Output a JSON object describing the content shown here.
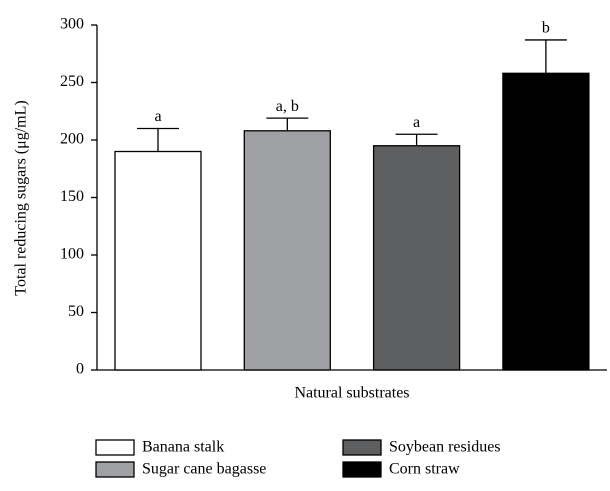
{
  "chart_data": {
    "type": "bar",
    "ylabel": "Total reducing sugars (μg/mL)",
    "categories": [
      "Natural substrates"
    ],
    "ylim": [
      0,
      300
    ],
    "yticks": [
      0,
      50,
      100,
      150,
      200,
      250,
      300
    ],
    "series": [
      {
        "name": "Banana stalk",
        "color": "#ffffff",
        "values": [
          190
        ],
        "errors": [
          20
        ],
        "letters": [
          "a"
        ]
      },
      {
        "name": "Sugar cane bagasse",
        "color": "#a0a1a5",
        "values": [
          208
        ],
        "errors": [
          11
        ],
        "letters": [
          "a, b"
        ]
      },
      {
        "name": "Soybean residues",
        "color": "#5e5f61",
        "values": [
          195
        ],
        "errors": [
          10
        ],
        "letters": [
          "a"
        ]
      },
      {
        "name": "Corn straw",
        "color": "#000000",
        "values": [
          258
        ],
        "errors": [
          29
        ],
        "letters": [
          "b"
        ]
      }
    ]
  }
}
